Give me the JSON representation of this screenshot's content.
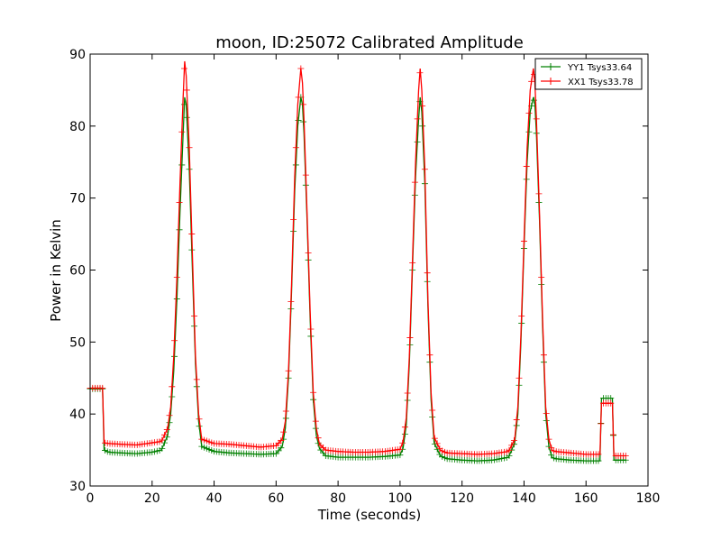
{
  "chart_data": {
    "type": "line",
    "title": "moon, ID:25072 Calibrated Amplitude",
    "xlabel": "Time (seconds)",
    "ylabel": "Power in Kelvin",
    "xlim": [
      0,
      180
    ],
    "ylim": [
      30,
      90
    ],
    "xticks": [
      "0",
      "20",
      "40",
      "60",
      "80",
      "100",
      "120",
      "140",
      "160",
      "180"
    ],
    "yticks": [
      "30",
      "40",
      "50",
      "60",
      "70",
      "80",
      "90"
    ],
    "grid": false,
    "legend_position": "top-right",
    "series": [
      {
        "name": "YY1 Tsys33.64",
        "color": "#008000",
        "x": [
          0,
          2,
          4,
          4.5,
          6,
          10,
          15,
          20,
          23,
          25,
          26,
          27,
          28,
          29,
          30,
          30.5,
          31,
          32,
          33,
          34,
          35,
          36,
          40,
          45,
          50,
          55,
          60,
          62,
          63,
          64,
          65,
          66,
          67,
          68,
          68.5,
          69,
          70,
          71,
          72,
          73,
          74,
          76,
          80,
          85,
          90,
          95,
          100,
          101,
          102,
          103,
          104,
          105,
          106,
          106.5,
          107,
          108,
          109,
          110,
          111,
          113,
          115,
          120,
          125,
          130,
          135,
          137,
          138,
          139,
          140,
          141,
          142,
          143,
          143.5,
          144,
          145,
          146,
          147,
          148,
          149,
          150,
          155,
          160,
          164.5,
          165,
          168.5,
          169,
          172,
          173
        ],
        "y": [
          43.5,
          43.5,
          43.5,
          35,
          34.7,
          34.6,
          34.5,
          34.7,
          35.0,
          37,
          40,
          46,
          56,
          68,
          79,
          84,
          83,
          74,
          60,
          47,
          39,
          35.5,
          34.8,
          34.6,
          34.5,
          34.4,
          34.5,
          35.5,
          38,
          45,
          57,
          71,
          80,
          84,
          83,
          79,
          67,
          53,
          42,
          37,
          35.2,
          34.2,
          34.0,
          34.0,
          34.0,
          34.1,
          34.3,
          35.3,
          38.5,
          47,
          60,
          73,
          81,
          84,
          82,
          72,
          55,
          42,
          36,
          34.2,
          33.8,
          33.6,
          33.5,
          33.6,
          34.0,
          36,
          40,
          50,
          63,
          75,
          82,
          84,
          83,
          79,
          67,
          52,
          40,
          35.5,
          34.0,
          33.8,
          33.6,
          33.5,
          33.5,
          42.2,
          42.2,
          33.6,
          33.6,
          33.6
        ]
      },
      {
        "name": "XX1 Tsys33.78",
        "color": "#ff0000",
        "x": [
          0,
          2,
          4,
          4.5,
          6,
          10,
          15,
          20,
          23,
          25,
          26,
          27,
          28,
          29,
          30,
          30.5,
          31,
          32,
          33,
          34,
          35,
          36,
          40,
          45,
          50,
          55,
          60,
          62,
          63,
          64,
          65,
          66,
          67,
          68,
          68.5,
          69,
          70,
          71,
          72,
          73,
          74,
          76,
          80,
          85,
          90,
          95,
          100,
          101,
          102,
          103,
          104,
          105,
          106,
          106.5,
          107,
          108,
          109,
          110,
          111,
          113,
          115,
          120,
          125,
          130,
          135,
          137,
          138,
          139,
          140,
          141,
          142,
          143,
          143.5,
          144,
          145,
          146,
          147,
          148,
          149,
          150,
          155,
          160,
          164.5,
          165,
          168.5,
          169,
          172,
          173
        ],
        "y": [
          43.6,
          43.6,
          43.6,
          36,
          35.9,
          35.8,
          35.7,
          36.0,
          36.2,
          38,
          41,
          48,
          59,
          72,
          84,
          89,
          87,
          77,
          62,
          48,
          40,
          36.5,
          35.9,
          35.8,
          35.6,
          35.4,
          35.6,
          36.5,
          39,
          46,
          58,
          73,
          83,
          88,
          86,
          81,
          68,
          54,
          43,
          38,
          35.8,
          35.0,
          34.8,
          34.7,
          34.7,
          34.8,
          35.1,
          36.2,
          39.5,
          48,
          61,
          75,
          85,
          88,
          85,
          74,
          56,
          43,
          36.8,
          35.0,
          34.6,
          34.5,
          34.4,
          34.5,
          34.8,
          36.5,
          41,
          51,
          64,
          77,
          85,
          88,
          86,
          81,
          68,
          53,
          41,
          36.5,
          35.0,
          34.8,
          34.6,
          34.4,
          34.4,
          41.5,
          41.5,
          34.2,
          34.2,
          34.2
        ]
      }
    ]
  }
}
